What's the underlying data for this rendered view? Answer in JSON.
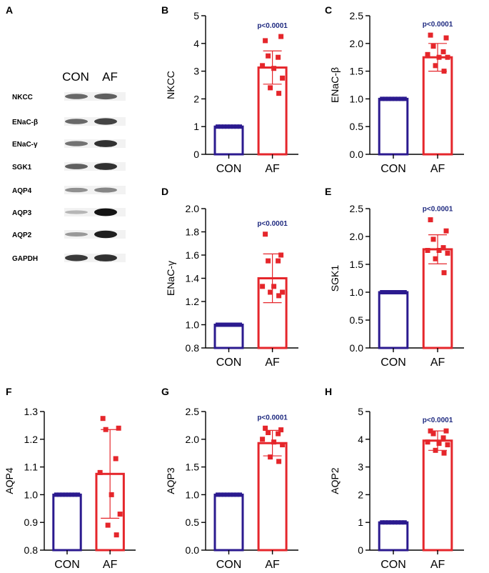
{
  "panel_letters": [
    "A",
    "B",
    "C",
    "D",
    "E",
    "F",
    "G",
    "H"
  ],
  "blot": {
    "headers": [
      "CON",
      "AF"
    ],
    "rows": [
      {
        "label": "NKCC",
        "con": 0.55,
        "af": 0.6
      },
      {
        "label": "ENaC-β",
        "con": 0.55,
        "af": 0.75
      },
      {
        "label": "ENaC-γ",
        "con": 0.5,
        "af": 0.85
      },
      {
        "label": "SGK1",
        "con": 0.6,
        "af": 0.85
      },
      {
        "label": "AQP4",
        "con": 0.35,
        "af": 0.4
      },
      {
        "label": "AQP3",
        "con": 0.15,
        "af": 1.0
      },
      {
        "label": "AQP2",
        "con": 0.3,
        "af": 0.95
      },
      {
        "label": "GAPDH",
        "con": 0.8,
        "af": 0.85
      }
    ]
  },
  "colors": {
    "con": "#2b1a8f",
    "af": "#e5262b",
    "pvalue": "#1f2a80"
  },
  "chart_data": [
    {
      "panel": "B",
      "type": "bar",
      "categories": [
        "CON",
        "AF"
      ],
      "ylabel": "NKCC",
      "ylim": [
        0,
        5
      ],
      "yticks": [
        "0",
        "1",
        "2",
        "3",
        "4",
        "5"
      ],
      "means": [
        1.0,
        3.13
      ],
      "sd": [
        0,
        0.6
      ],
      "con_points": [
        1,
        1,
        1,
        1,
        1,
        1,
        1,
        1
      ],
      "af_points": [
        4.1,
        4.25,
        3.55,
        3.5,
        3.2,
        3.1,
        2.75,
        2.4,
        2.2
      ],
      "pvalue": "p<0.0001"
    },
    {
      "panel": "C",
      "type": "bar",
      "categories": [
        "CON",
        "AF"
      ],
      "ylabel": "ENaC-β",
      "ylim": [
        0,
        2.5
      ],
      "yticks": [
        "0.0",
        "0.5",
        "1.0",
        "1.5",
        "2.0",
        "2.5"
      ],
      "means": [
        1.0,
        1.75
      ],
      "sd": [
        0,
        0.25
      ],
      "con_points": [
        1,
        1,
        1,
        1,
        1,
        1,
        1,
        1
      ],
      "af_points": [
        2.15,
        2.1,
        1.95,
        1.85,
        1.8,
        1.75,
        1.75,
        1.6,
        1.5
      ],
      "pvalue": "p<0.0001"
    },
    {
      "panel": "D",
      "type": "bar",
      "categories": [
        "CON",
        "AF"
      ],
      "ylabel": "ENaC-γ",
      "ylim": [
        0.8,
        2.0
      ],
      "yticks": [
        "0.8",
        "1.0",
        "1.2",
        "1.4",
        "1.6",
        "1.8",
        "2.0"
      ],
      "means": [
        1.0,
        1.4
      ],
      "sd": [
        0,
        0.21
      ],
      "con_points": [
        1,
        1,
        1,
        1,
        1,
        1,
        1,
        1
      ],
      "af_points": [
        1.78,
        1.6,
        1.55,
        1.55,
        1.33,
        1.33,
        1.28,
        1.28,
        1.25
      ],
      "pvalue": "p<0.0001"
    },
    {
      "panel": "E",
      "type": "bar",
      "categories": [
        "CON",
        "AF"
      ],
      "ylabel": "SGK1",
      "ylim": [
        0,
        2.5
      ],
      "yticks": [
        "0.0",
        "0.5",
        "1.0",
        "1.5",
        "2.0",
        "2.5"
      ],
      "means": [
        1.0,
        1.77
      ],
      "sd": [
        0,
        0.26
      ],
      "con_points": [
        1,
        1,
        1,
        1,
        1,
        1,
        1,
        1
      ],
      "af_points": [
        2.3,
        2.1,
        1.95,
        1.8,
        1.75,
        1.75,
        1.7,
        1.6,
        1.35
      ],
      "pvalue": "p<0.0001"
    },
    {
      "panel": "F",
      "type": "bar",
      "categories": [
        "CON",
        "AF"
      ],
      "ylabel": "AQP4",
      "ylim": [
        0.8,
        1.3
      ],
      "yticks": [
        "0.8",
        "0.9",
        "1.0",
        "1.1",
        "1.2",
        "1.3"
      ],
      "means": [
        1.0,
        1.075
      ],
      "sd": [
        0,
        0.16
      ],
      "con_points": [
        1,
        1,
        1,
        1,
        1,
        1,
        1,
        1
      ],
      "af_points": [
        1.275,
        1.24,
        1.235,
        1.13,
        1.08,
        1.0,
        0.93,
        0.89,
        0.855
      ],
      "pvalue": ""
    },
    {
      "panel": "G",
      "type": "bar",
      "categories": [
        "CON",
        "AF"
      ],
      "ylabel": "AQP3",
      "ylim": [
        0,
        2.5
      ],
      "yticks": [
        "0.0",
        "0.5",
        "1.0",
        "1.5",
        "2.0",
        "2.5"
      ],
      "means": [
        1.0,
        1.93
      ],
      "sd": [
        0,
        0.23
      ],
      "con_points": [
        1,
        1,
        1,
        1,
        1,
        1,
        1,
        1
      ],
      "af_points": [
        2.2,
        2.17,
        2.12,
        2.1,
        2.0,
        1.95,
        1.9,
        1.68,
        1.6
      ],
      "pvalue": "p<0.0001"
    },
    {
      "panel": "H",
      "type": "bar",
      "categories": [
        "CON",
        "AF"
      ],
      "ylabel": "AQP2",
      "ylim": [
        0,
        5
      ],
      "yticks": [
        "0",
        "1",
        "2",
        "3",
        "4",
        "5"
      ],
      "means": [
        1.0,
        3.95
      ],
      "sd": [
        0,
        0.35
      ],
      "con_points": [
        1,
        1,
        1,
        1,
        1,
        1,
        1,
        1
      ],
      "af_points": [
        4.3,
        4.3,
        4.2,
        4.05,
        3.9,
        3.85,
        3.8,
        3.6,
        3.5
      ],
      "pvalue": "p<0.0001"
    }
  ]
}
